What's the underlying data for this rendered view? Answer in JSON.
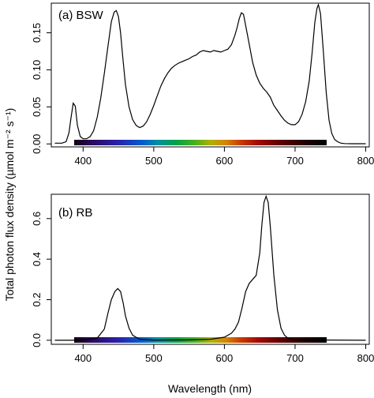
{
  "figure": {
    "xlabel": "Wavelength (nm)",
    "ylabel": "Total photon flux density (µmol m⁻² s⁻¹)"
  },
  "chart_data": [
    {
      "type": "line",
      "panel_label": "(a) BSW",
      "xlim": [
        355,
        805
      ],
      "ylim": [
        -0.004,
        0.19
      ],
      "xticks": [
        400,
        500,
        600,
        700,
        800
      ],
      "yticks": [
        0.0,
        0.05,
        0.1,
        0.15
      ],
      "ytick_labels": [
        "0.00",
        "0.05",
        "0.10",
        "0.15"
      ],
      "color_bar_range": [
        380,
        750
      ],
      "series": [
        {
          "x": [
            360,
            370,
            376,
            380,
            383,
            386,
            389,
            392,
            396,
            400,
            405,
            410,
            415,
            420,
            425,
            430,
            435,
            440,
            444,
            447,
            450,
            453,
            456,
            460,
            465,
            470,
            475,
            480,
            485,
            490,
            495,
            500,
            505,
            510,
            515,
            520,
            525,
            530,
            535,
            540,
            545,
            550,
            555,
            560,
            565,
            570,
            575,
            580,
            585,
            590,
            595,
            600,
            605,
            610,
            615,
            618,
            621,
            624,
            627,
            630,
            635,
            640,
            645,
            650,
            655,
            660,
            665,
            670,
            675,
            680,
            685,
            690,
            695,
            700,
            705,
            710,
            715,
            720,
            724,
            728,
            731,
            733,
            736,
            740,
            744,
            748,
            752,
            756,
            760,
            765,
            770,
            780,
            790,
            800
          ],
          "y": [
            0.001,
            0.001,
            0.003,
            0.015,
            0.036,
            0.055,
            0.051,
            0.025,
            0.01,
            0.007,
            0.007,
            0.01,
            0.018,
            0.036,
            0.062,
            0.095,
            0.13,
            0.165,
            0.178,
            0.18,
            0.172,
            0.15,
            0.118,
            0.08,
            0.05,
            0.033,
            0.025,
            0.022,
            0.024,
            0.03,
            0.04,
            0.052,
            0.065,
            0.078,
            0.088,
            0.096,
            0.102,
            0.106,
            0.109,
            0.111,
            0.113,
            0.115,
            0.118,
            0.12,
            0.124,
            0.126,
            0.125,
            0.124,
            0.126,
            0.125,
            0.124,
            0.126,
            0.128,
            0.134,
            0.147,
            0.157,
            0.169,
            0.177,
            0.175,
            0.16,
            0.135,
            0.11,
            0.093,
            0.082,
            0.075,
            0.07,
            0.063,
            0.052,
            0.045,
            0.038,
            0.032,
            0.028,
            0.026,
            0.026,
            0.03,
            0.04,
            0.057,
            0.085,
            0.122,
            0.164,
            0.183,
            0.188,
            0.176,
            0.125,
            0.07,
            0.032,
            0.014,
            0.006,
            0.003,
            0.001,
            0.0005,
            0.0003,
            0.0003,
            0.0003
          ]
        }
      ]
    },
    {
      "type": "line",
      "panel_label": "(b) RB",
      "xlim": [
        355,
        805
      ],
      "ylim": [
        -0.02,
        0.72
      ],
      "xticks": [
        400,
        500,
        600,
        700,
        800
      ],
      "yticks": [
        0.0,
        0.2,
        0.4,
        0.6
      ],
      "ytick_labels": [
        "0.0",
        "0.2",
        "0.4",
        "0.6"
      ],
      "color_bar_range": [
        380,
        750
      ],
      "series": [
        {
          "x": [
            360,
            380,
            400,
            420,
            430,
            435,
            440,
            445,
            449,
            453,
            457,
            460,
            465,
            470,
            480,
            500,
            550,
            580,
            600,
            610,
            615,
            620,
            625,
            630,
            635,
            640,
            645,
            650,
            653,
            656,
            659,
            662,
            665,
            670,
            675,
            680,
            685,
            690,
            700,
            720,
            750,
            800
          ],
          "y": [
            0.0,
            0.0,
            0.001,
            0.01,
            0.055,
            0.13,
            0.2,
            0.24,
            0.255,
            0.24,
            0.18,
            0.12,
            0.06,
            0.025,
            0.005,
            0.001,
            0.002,
            0.005,
            0.015,
            0.035,
            0.055,
            0.09,
            0.16,
            0.24,
            0.28,
            0.3,
            0.32,
            0.43,
            0.57,
            0.68,
            0.71,
            0.68,
            0.56,
            0.32,
            0.15,
            0.06,
            0.025,
            0.01,
            0.002,
            0.001,
            0.001,
            0.0
          ]
        }
      ]
    }
  ]
}
